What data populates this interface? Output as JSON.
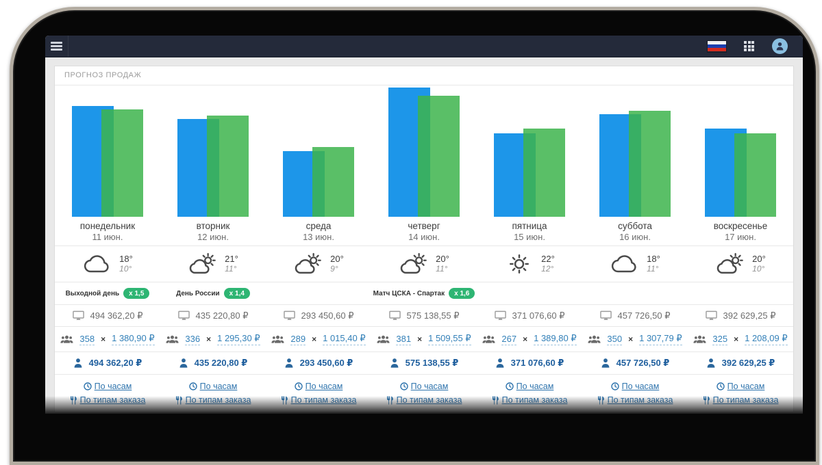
{
  "navbar": {
    "menu_icon": "hamburger",
    "language_flag": "russia",
    "apps_icon": "grid-3x3",
    "avatar_icon": "user-silhouette"
  },
  "header": {
    "title": "ПРОГНОЗ ПРОДАЖ"
  },
  "labels": {
    "times": "×",
    "by_hours": "По часам",
    "by_order_type": "По типам заказа"
  },
  "colors": {
    "navbar_bg": "#242a3a",
    "bar_blue": "#1d96e9",
    "bar_green": "rgba(61,180,76,0.85)",
    "badge_green": "#2eb573",
    "link_blue": "#2f74ad",
    "guest_link_blue": "#3380b8",
    "person_value_blue": "#1f5f9e",
    "page_bg": "#e9e9e9"
  },
  "days": [
    {
      "name": "понедельник",
      "date": "11 июн.",
      "weather": {
        "icon": "cloud",
        "high": "18°",
        "low": "10°"
      },
      "event": {
        "label": "Выходной день",
        "multiplier": "x 1,5"
      },
      "forecast": "494 362,20 ₽",
      "guests": {
        "count": "358",
        "avg": "1 380,90 ₽"
      },
      "per_person": "494 362,20 ₽"
    },
    {
      "name": "вторник",
      "date": "12 июн.",
      "weather": {
        "icon": "sun-cloud",
        "high": "21°",
        "low": "11°"
      },
      "event": {
        "label": "День России",
        "multiplier": "x 1,4"
      },
      "forecast": "435 220,80 ₽",
      "guests": {
        "count": "336",
        "avg": "1 295,30 ₽"
      },
      "per_person": "435 220,80 ₽"
    },
    {
      "name": "среда",
      "date": "13 июн.",
      "weather": {
        "icon": "sun-cloud",
        "high": "20°",
        "low": "9°"
      },
      "event": null,
      "forecast": "293 450,60 ₽",
      "guests": {
        "count": "289",
        "avg": "1 015,40 ₽"
      },
      "per_person": "293 450,60 ₽"
    },
    {
      "name": "четверг",
      "date": "14 июн.",
      "weather": {
        "icon": "sun-cloud",
        "high": "20°",
        "low": "11°"
      },
      "event": {
        "label": "Матч ЦСКА - Спартак",
        "multiplier": "x 1,6"
      },
      "forecast": "575 138,55 ₽",
      "guests": {
        "count": "381",
        "avg": "1 509,55 ₽"
      },
      "per_person": "575 138,55 ₽"
    },
    {
      "name": "пятница",
      "date": "15 июн.",
      "weather": {
        "icon": "sun",
        "high": "22°",
        "low": "12°"
      },
      "event": null,
      "forecast": "371 076,60 ₽",
      "guests": {
        "count": "267",
        "avg": "1 389,80 ₽"
      },
      "per_person": "371 076,60 ₽"
    },
    {
      "name": "суббота",
      "date": "16 июн.",
      "weather": {
        "icon": "cloud",
        "high": "18°",
        "low": "11°"
      },
      "event": null,
      "forecast": "457 726,50 ₽",
      "guests": {
        "count": "350",
        "avg": "1 307,79 ₽"
      },
      "per_person": "457 726,50 ₽"
    },
    {
      "name": "воскресенье",
      "date": "17 июн.",
      "weather": {
        "icon": "sun-cloud",
        "high": "20°",
        "low": "10°"
      },
      "event": null,
      "forecast": "392 629,25 ₽",
      "guests": {
        "count": "325",
        "avg": "1 208,09 ₽"
      },
      "per_person": "392 629,25 ₽"
    }
  ],
  "chart_data": {
    "type": "bar",
    "categories": [
      "понедельник 11 июн.",
      "вторник 12 июн.",
      "среда 13 июн.",
      "четверг 14 июн.",
      "пятница 15 июн.",
      "суббота 16 июн.",
      "воскресенье 17 июн."
    ],
    "series": [
      {
        "name": "blue",
        "color": "#1d96e9",
        "values": [
          494362.2,
          435220.8,
          293450.6,
          575138.55,
          371076.6,
          457726.5,
          392629.25
        ]
      },
      {
        "name": "green",
        "color": "rgba(61,180,76,0.85)",
        "values": [
          477800,
          450300,
          310400,
          538600,
          392500,
          471600,
          371300
        ]
      }
    ],
    "title": "ПРОГНОЗ ПРОДАЖ",
    "xlabel": "",
    "ylabel": "",
    "ylim": [
      0,
      575138.55
    ],
    "grid": false,
    "legend": "none",
    "note": "green series values estimated from bar heights; no value labels shown on chart"
  }
}
